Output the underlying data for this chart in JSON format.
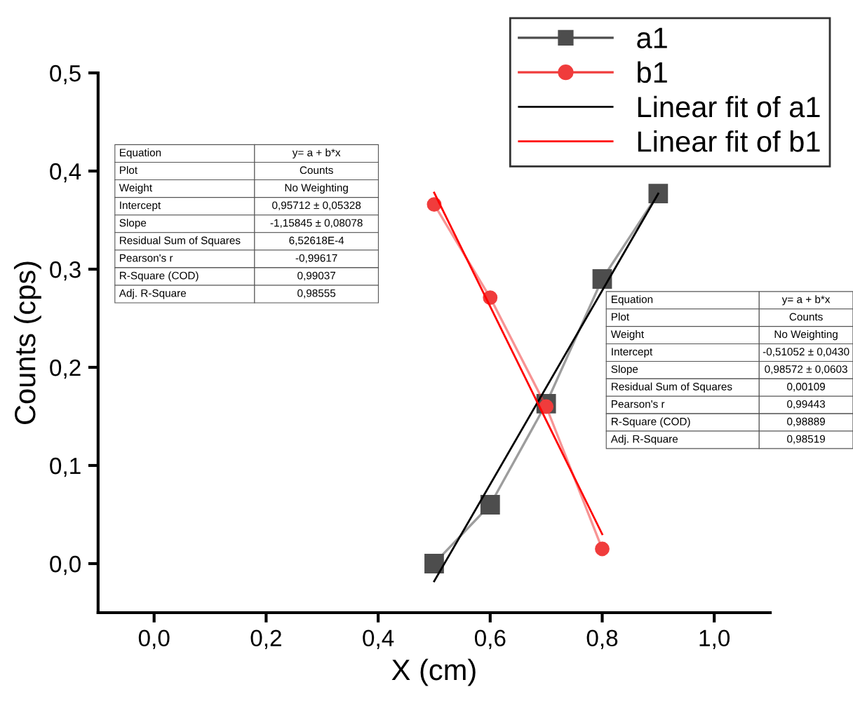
{
  "chart_data": {
    "type": "line",
    "xlabel": "X (cm)",
    "ylabel": "Counts (cps)",
    "xlim": [
      -0.1,
      1.1
    ],
    "ylim": [
      -0.05,
      0.5
    ],
    "xticks": [
      {
        "value": 0.0,
        "label": "0,0"
      },
      {
        "value": 0.2,
        "label": "0,2"
      },
      {
        "value": 0.4,
        "label": "0,4"
      },
      {
        "value": 0.6,
        "label": "0,6"
      },
      {
        "value": 0.8,
        "label": "0,8"
      },
      {
        "value": 1.0,
        "label": "1,0"
      }
    ],
    "yticks": [
      {
        "value": 0.0,
        "label": "0,0"
      },
      {
        "value": 0.1,
        "label": "0,1"
      },
      {
        "value": 0.2,
        "label": "0,2"
      },
      {
        "value": 0.3,
        "label": "0,3"
      },
      {
        "value": 0.4,
        "label": "0,4"
      },
      {
        "value": 0.5,
        "label": "0,5"
      }
    ],
    "grid": false,
    "legend": "top right",
    "series": [
      {
        "name": "a1",
        "color": "#4d4d4d",
        "marker": "square",
        "x": [
          0.5,
          0.6,
          0.7,
          0.8,
          0.9
        ],
        "values": [
          0.0,
          0.06,
          0.163,
          0.29,
          0.377
        ]
      },
      {
        "name": "b1",
        "color": "#f03c3c",
        "marker": "circle",
        "x": [
          0.5,
          0.6,
          0.7,
          0.8
        ],
        "values": [
          0.366,
          0.271,
          0.16,
          0.015
        ]
      },
      {
        "name": "Linear fit of a1",
        "color": "#000000",
        "marker": "none",
        "x": [
          0.5,
          0.9
        ],
        "values": [
          -0.018,
          0.377
        ]
      },
      {
        "name": "Linear fit of b1",
        "color": "#ff0000",
        "marker": "none",
        "x": [
          0.5,
          0.8
        ],
        "values": [
          0.378,
          0.03
        ]
      }
    ],
    "annotations": [
      "Equation",
      "y= a + b*x",
      "Plot",
      "Counts",
      "Weight",
      "No Weighting",
      "Intercept",
      "0,95712 ± 0,05328",
      "Slope",
      "-1,15845 ± 0,08078",
      "Residual Sum of Squares",
      "6,52618E-4",
      "Pearson's r",
      "-0,99617",
      "R-Square (COD)",
      "0,99037",
      "Adj. R-Square",
      "0,98555",
      "Equation",
      "y= a + b*x",
      "Plot",
      "Counts",
      "Weight",
      "No Weighting",
      "Intercept",
      "-0,51052 ± 0,0430",
      "Slope",
      "0,98572 ± 0,0603",
      "Residual Sum of Squares",
      "0,00109",
      "Pearson's r",
      "0,99443",
      "R-Square (COD)",
      "0,98889",
      "Adj. R-Square",
      "0,98519"
    ]
  }
}
